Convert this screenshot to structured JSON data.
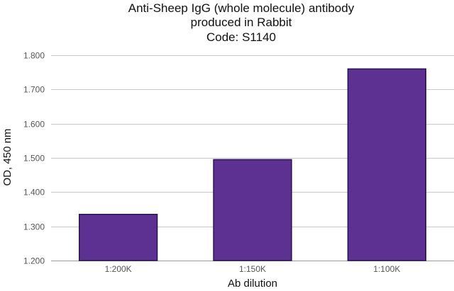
{
  "chart_data": {
    "type": "bar",
    "title": [
      "Anti-Sheep IgG (whole molecule) antibody",
      "produced in Rabbit",
      "Code: S1140"
    ],
    "xlabel": "Ab dilution",
    "ylabel": "OD, 450 nm",
    "categories": [
      "1:200K",
      "1:150K",
      "1:100K"
    ],
    "values": [
      1.335,
      1.495,
      1.76
    ],
    "ylim": [
      1.2,
      1.8
    ],
    "yticks": [
      1.2,
      1.3,
      1.4,
      1.5,
      1.6,
      1.7,
      1.8
    ],
    "ytick_labels": [
      "1.200",
      "1.300",
      "1.400",
      "1.500",
      "1.600",
      "1.700",
      "1.800"
    ],
    "grid": true,
    "legend": "none",
    "colors": {
      "bar_fill": "#5c3191",
      "bar_stroke": "#2a1450"
    }
  }
}
